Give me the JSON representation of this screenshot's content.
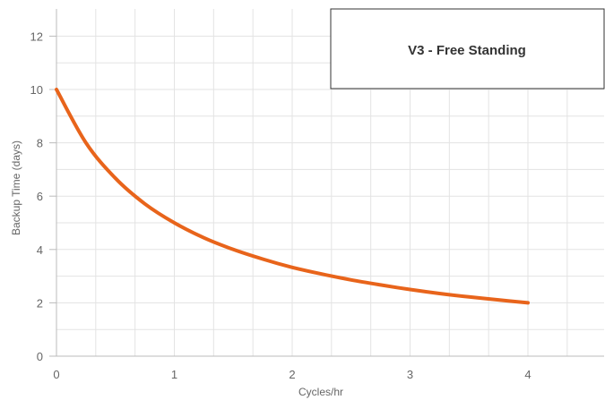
{
  "chart_data": {
    "type": "line",
    "title": "",
    "xlabel": "Cycles/hr",
    "ylabel": "Backup Time (days)",
    "xlim": [
      0,
      4.7
    ],
    "ylim": [
      0,
      12.5
    ],
    "x_ticks": [
      0,
      1,
      2,
      3,
      4
    ],
    "y_ticks": [
      0,
      2,
      4,
      6,
      8,
      10,
      12
    ],
    "grid": true,
    "legend_placement": "top-right",
    "series": [
      {
        "name": "V3 - Free Standing",
        "color": "#e8641b",
        "x": [
          0,
          0.25,
          0.5,
          0.75,
          1,
          1.25,
          1.5,
          1.75,
          2,
          2.25,
          2.5,
          2.75,
          3,
          3.25,
          3.5,
          3.75,
          4
        ],
        "y": [
          10,
          8,
          6.67,
          5.71,
          5.0,
          4.44,
          4.0,
          3.64,
          3.33,
          3.08,
          2.86,
          2.67,
          2.5,
          2.35,
          2.22,
          2.11,
          2.0
        ]
      }
    ]
  }
}
